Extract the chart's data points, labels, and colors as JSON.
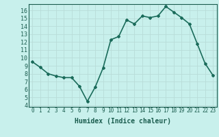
{
  "x": [
    0,
    1,
    2,
    3,
    4,
    5,
    6,
    7,
    8,
    9,
    10,
    11,
    12,
    13,
    14,
    15,
    16,
    17,
    18,
    19,
    20,
    21,
    22,
    23
  ],
  "y": [
    9.5,
    8.8,
    8.0,
    7.7,
    7.5,
    7.5,
    6.4,
    4.5,
    6.3,
    8.7,
    12.3,
    12.7,
    14.8,
    14.3,
    15.3,
    15.1,
    15.3,
    16.5,
    15.8,
    15.1,
    14.3,
    11.8,
    9.3,
    7.8
  ],
  "xlim": [
    -0.5,
    23.5
  ],
  "ylim": [
    3.8,
    16.8
  ],
  "yticks": [
    4,
    5,
    6,
    7,
    8,
    9,
    10,
    11,
    12,
    13,
    14,
    15,
    16
  ],
  "xticks": [
    0,
    1,
    2,
    3,
    4,
    5,
    6,
    7,
    8,
    9,
    10,
    11,
    12,
    13,
    14,
    15,
    16,
    17,
    18,
    19,
    20,
    21,
    22,
    23
  ],
  "xlabel": "Humidex (Indice chaleur)",
  "line_color": "#1a6b5a",
  "marker": "D",
  "marker_size": 2,
  "bg_color": "#c8f0ec",
  "grid_color": "#b8dcd8",
  "tick_color": "#1a5c4e",
  "xlabel_color": "#1a5c4e",
  "xlabel_fontsize": 7,
  "ytick_fontsize": 6,
  "xtick_fontsize": 5.5,
  "line_width": 1.2
}
